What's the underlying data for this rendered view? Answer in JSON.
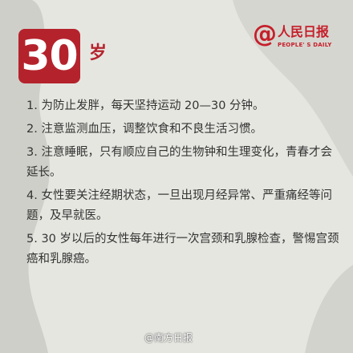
{
  "header": {
    "age_number": "30",
    "age_unit": "岁"
  },
  "brand": {
    "at_symbol": "@",
    "name": "人民日报",
    "subtitle": "PEOPLE' S DAILY"
  },
  "tips": [
    "1. 为防止发胖，每天坚持运动 20—30 分钟。",
    "2. 注意监测血压，调整饮食和不良生活习惯。",
    "3. 注意睡眠，只有顺应自己的生物钟和生理变化，青春才会延长。",
    "4. 女性要关注经期状态，一旦出现月经异常、严重痛经等问题，及早就医。",
    "5. 30 岁以后的女性每年进行一次宫颈和乳腺检查，警惕宫颈癌和乳腺癌。"
  ],
  "watermark": "@南方日报",
  "colors": {
    "accent": "#b4232c",
    "background": "#e6e6e1",
    "silhouette": "#c9c9c3",
    "text": "#333333"
  }
}
